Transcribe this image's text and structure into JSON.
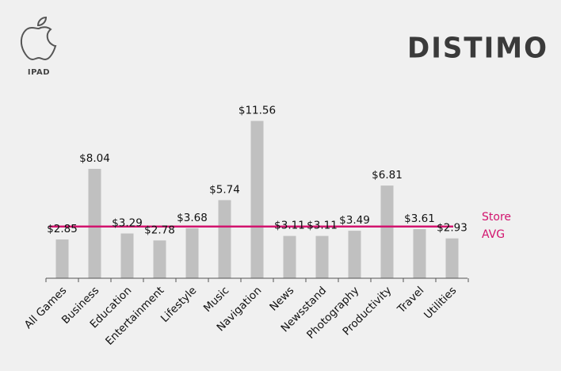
{
  "header": {
    "platform_label": "IPAD",
    "brand": "DISTIMO"
  },
  "colors": {
    "bar": "#c0c0c0",
    "avg_line": "#d2146e",
    "axis": "#555555"
  },
  "chart_data": {
    "type": "bar",
    "categories": [
      "All Games",
      "Business",
      "Education",
      "Entertainment",
      "Lifestyle",
      "Music",
      "Navigation",
      "News",
      "Newsstand",
      "Photography",
      "Productivity",
      "Travel",
      "Utilities"
    ],
    "values": [
      2.85,
      8.04,
      3.29,
      2.78,
      3.68,
      5.74,
      11.56,
      3.11,
      3.11,
      3.49,
      6.81,
      3.61,
      2.93
    ],
    "value_labels": [
      "$2.85",
      "$8.04",
      "$3.29",
      "$2.78",
      "$3.68",
      "$5.74",
      "$11.56",
      "$3.11",
      "$3.11",
      "$3.49",
      "$6.81",
      "$3.61",
      "$2.93"
    ],
    "store_avg": 3.8,
    "avg_label": [
      "Store",
      "AVG"
    ],
    "ylim": [
      0,
      12
    ],
    "grid": false,
    "legend": "none"
  }
}
